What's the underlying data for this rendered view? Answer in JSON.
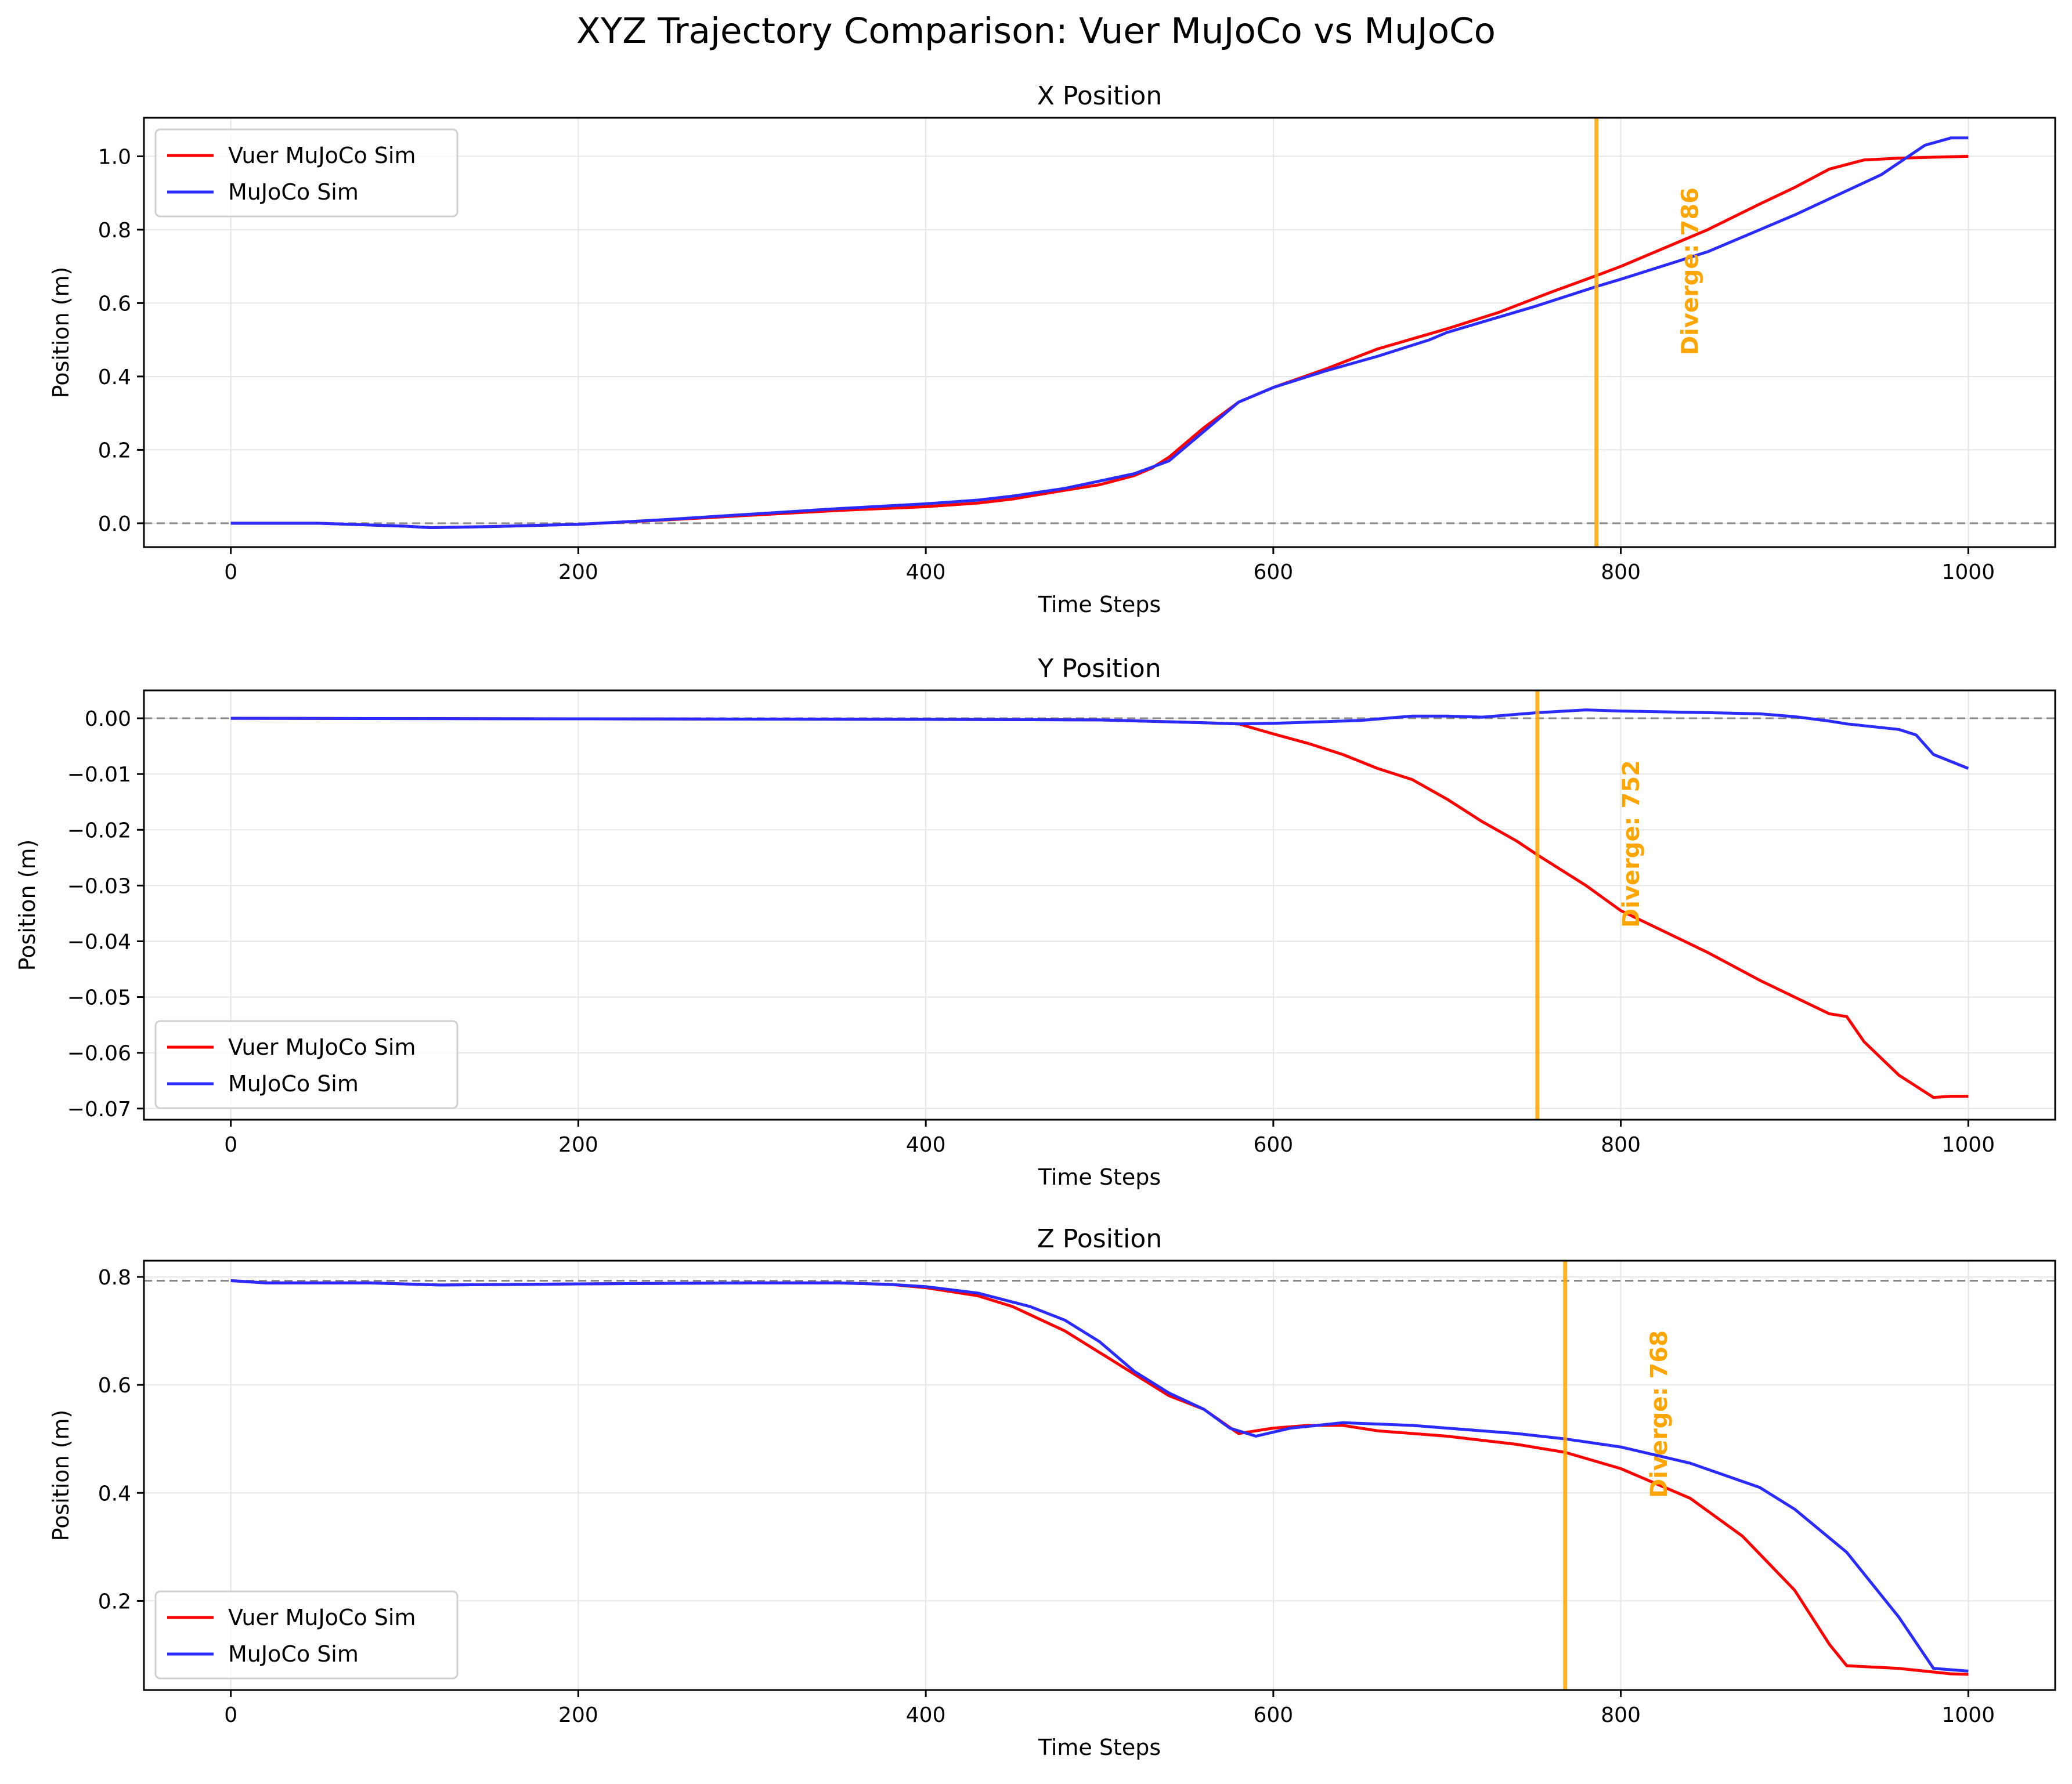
{
  "figure_title": "XYZ Trajectory Comparison: Vuer MuJoCo vs MuJoCo",
  "colors": {
    "vuer": "#ff0000",
    "mujoco": "#2b2bff",
    "diverge": "#ffa500",
    "reference": "#888888",
    "grid": "#e6e6e6"
  },
  "chart_data": [
    {
      "type": "line",
      "title": "X Position",
      "xlabel": "Time Steps",
      "ylabel": "Position (m)",
      "xlim": [
        -50,
        1050
      ],
      "ylim": [
        -0.065,
        1.105
      ],
      "xticks": [
        0,
        200,
        400,
        600,
        800,
        1000
      ],
      "yticks": [
        0.0,
        0.2,
        0.4,
        0.6,
        0.8,
        1.0
      ],
      "ytick_labels": [
        "0.0",
        "0.2",
        "0.4",
        "0.6",
        "0.8",
        "1.0"
      ],
      "grid": true,
      "legend_position": "upper-left",
      "reference_line": 0.0,
      "diverge": {
        "x": 786,
        "label": "Diverge: 786"
      },
      "series": [
        {
          "name": "Vuer MuJoCo Sim",
          "color": "#ff0000",
          "points": [
            [
              0,
              0.0
            ],
            [
              50,
              0.0
            ],
            [
              100,
              -0.008
            ],
            [
              115,
              -0.012
            ],
            [
              150,
              -0.009
            ],
            [
              200,
              -0.003
            ],
            [
              250,
              0.009
            ],
            [
              300,
              0.022
            ],
            [
              350,
              0.035
            ],
            [
              400,
              0.045
            ],
            [
              430,
              0.055
            ],
            [
              450,
              0.066
            ],
            [
              480,
              0.09
            ],
            [
              500,
              0.105
            ],
            [
              520,
              0.13
            ],
            [
              530,
              0.15
            ],
            [
              540,
              0.18
            ],
            [
              560,
              0.26
            ],
            [
              580,
              0.33
            ],
            [
              600,
              0.37
            ],
            [
              630,
              0.42
            ],
            [
              660,
              0.475
            ],
            [
              700,
              0.53
            ],
            [
              730,
              0.575
            ],
            [
              760,
              0.63
            ],
            [
              786,
              0.675
            ],
            [
              800,
              0.7
            ],
            [
              850,
              0.8
            ],
            [
              880,
              0.87
            ],
            [
              900,
              0.915
            ],
            [
              920,
              0.965
            ],
            [
              940,
              0.99
            ],
            [
              960,
              0.995
            ],
            [
              1000,
              1.0
            ]
          ]
        },
        {
          "name": "MuJoCo Sim",
          "color": "#2b2bff",
          "points": [
            [
              0,
              0.0
            ],
            [
              50,
              0.0
            ],
            [
              100,
              -0.008
            ],
            [
              115,
              -0.012
            ],
            [
              150,
              -0.009
            ],
            [
              200,
              -0.003
            ],
            [
              250,
              0.01
            ],
            [
              300,
              0.025
            ],
            [
              350,
              0.04
            ],
            [
              400,
              0.053
            ],
            [
              430,
              0.063
            ],
            [
              450,
              0.074
            ],
            [
              480,
              0.095
            ],
            [
              500,
              0.115
            ],
            [
              520,
              0.135
            ],
            [
              540,
              0.17
            ],
            [
              560,
              0.25
            ],
            [
              580,
              0.33
            ],
            [
              600,
              0.37
            ],
            [
              630,
              0.415
            ],
            [
              660,
              0.455
            ],
            [
              690,
              0.5
            ],
            [
              700,
              0.52
            ],
            [
              750,
              0.59
            ],
            [
              786,
              0.645
            ],
            [
              800,
              0.665
            ],
            [
              850,
              0.74
            ],
            [
              900,
              0.84
            ],
            [
              950,
              0.95
            ],
            [
              975,
              1.03
            ],
            [
              990,
              1.05
            ],
            [
              1000,
              1.05
            ]
          ]
        }
      ]
    },
    {
      "type": "line",
      "title": "Y Position",
      "xlabel": "Time Steps",
      "ylabel": "Position (m)",
      "xlim": [
        -50,
        1050
      ],
      "ylim": [
        -0.072,
        0.005
      ],
      "xticks": [
        0,
        200,
        400,
        600,
        800,
        1000
      ],
      "yticks": [
        0.0,
        -0.01,
        -0.02,
        -0.03,
        -0.04,
        -0.05,
        -0.06,
        -0.07
      ],
      "ytick_labels": [
        "0.00",
        "−0.01",
        "−0.02",
        "−0.03",
        "−0.04",
        "−0.05",
        "−0.06",
        "−0.07"
      ],
      "grid": true,
      "legend_position": "lower-left",
      "reference_line": 0.0,
      "diverge": {
        "x": 752,
        "label": "Diverge: 752"
      },
      "series": [
        {
          "name": "Vuer MuJoCo Sim",
          "color": "#ff0000",
          "points": [
            [
              0,
              0.0
            ],
            [
              200,
              -0.0001
            ],
            [
              400,
              -0.0002
            ],
            [
              500,
              -0.0003
            ],
            [
              560,
              -0.0008
            ],
            [
              580,
              -0.001
            ],
            [
              600,
              -0.0028
            ],
            [
              620,
              -0.0045
            ],
            [
              640,
              -0.0065
            ],
            [
              660,
              -0.009
            ],
            [
              680,
              -0.011
            ],
            [
              700,
              -0.0145
            ],
            [
              720,
              -0.0185
            ],
            [
              740,
              -0.022
            ],
            [
              752,
              -0.0245
            ],
            [
              780,
              -0.03
            ],
            [
              800,
              -0.0345
            ],
            [
              820,
              -0.0375
            ],
            [
              850,
              -0.042
            ],
            [
              880,
              -0.047
            ],
            [
              900,
              -0.05
            ],
            [
              920,
              -0.053
            ],
            [
              930,
              -0.0535
            ],
            [
              940,
              -0.058
            ],
            [
              960,
              -0.064
            ],
            [
              980,
              -0.068
            ],
            [
              990,
              -0.0678
            ],
            [
              1000,
              -0.0678
            ]
          ]
        },
        {
          "name": "MuJoCo Sim",
          "color": "#2b2bff",
          "points": [
            [
              0,
              0.0
            ],
            [
              200,
              -0.0001
            ],
            [
              400,
              -0.0002
            ],
            [
              500,
              -0.0003
            ],
            [
              560,
              -0.0008
            ],
            [
              580,
              -0.001
            ],
            [
              600,
              -0.0009
            ],
            [
              650,
              -0.0004
            ],
            [
              680,
              0.0004
            ],
            [
              700,
              0.0004
            ],
            [
              720,
              0.0002
            ],
            [
              752,
              0.001
            ],
            [
              780,
              0.0015
            ],
            [
              800,
              0.0013
            ],
            [
              850,
              0.001
            ],
            [
              880,
              0.0008
            ],
            [
              900,
              0.0003
            ],
            [
              920,
              -0.0005
            ],
            [
              930,
              -0.001
            ],
            [
              960,
              -0.002
            ],
            [
              970,
              -0.003
            ],
            [
              980,
              -0.0065
            ],
            [
              1000,
              -0.009
            ]
          ]
        }
      ]
    },
    {
      "type": "line",
      "title": "Z Position",
      "xlabel": "Time Steps",
      "ylabel": "Position (m)",
      "xlim": [
        -50,
        1050
      ],
      "ylim": [
        0.035,
        0.83
      ],
      "xticks": [
        0,
        200,
        400,
        600,
        800,
        1000
      ],
      "yticks": [
        0.2,
        0.4,
        0.6,
        0.8
      ],
      "ytick_labels": [
        "0.2",
        "0.4",
        "0.6",
        "0.8"
      ],
      "grid": true,
      "legend_position": "lower-left",
      "reference_line": 0.793,
      "diverge": {
        "x": 768,
        "label": "Diverge: 768"
      },
      "series": [
        {
          "name": "Vuer MuJoCo Sim",
          "color": "#ff0000",
          "points": [
            [
              0,
              0.793
            ],
            [
              20,
              0.789
            ],
            [
              80,
              0.789
            ],
            [
              120,
              0.785
            ],
            [
              200,
              0.787
            ],
            [
              300,
              0.789
            ],
            [
              350,
              0.789
            ],
            [
              380,
              0.786
            ],
            [
              400,
              0.78
            ],
            [
              430,
              0.765
            ],
            [
              450,
              0.745
            ],
            [
              480,
              0.7
            ],
            [
              500,
              0.66
            ],
            [
              520,
              0.62
            ],
            [
              540,
              0.58
            ],
            [
              560,
              0.555
            ],
            [
              580,
              0.51
            ],
            [
              600,
              0.52
            ],
            [
              620,
              0.525
            ],
            [
              640,
              0.525
            ],
            [
              660,
              0.515
            ],
            [
              700,
              0.505
            ],
            [
              740,
              0.49
            ],
            [
              768,
              0.475
            ],
            [
              800,
              0.445
            ],
            [
              840,
              0.39
            ],
            [
              870,
              0.32
            ],
            [
              900,
              0.22
            ],
            [
              920,
              0.12
            ],
            [
              930,
              0.08
            ],
            [
              960,
              0.075
            ],
            [
              990,
              0.065
            ],
            [
              1000,
              0.064
            ]
          ]
        },
        {
          "name": "MuJoCo Sim",
          "color": "#2b2bff",
          "points": [
            [
              0,
              0.793
            ],
            [
              20,
              0.789
            ],
            [
              80,
              0.789
            ],
            [
              120,
              0.785
            ],
            [
              200,
              0.787
            ],
            [
              300,
              0.789
            ],
            [
              350,
              0.789
            ],
            [
              380,
              0.786
            ],
            [
              400,
              0.782
            ],
            [
              430,
              0.77
            ],
            [
              460,
              0.745
            ],
            [
              480,
              0.72
            ],
            [
              500,
              0.68
            ],
            [
              520,
              0.625
            ],
            [
              540,
              0.585
            ],
            [
              560,
              0.555
            ],
            [
              575,
              0.52
            ],
            [
              590,
              0.505
            ],
            [
              610,
              0.52
            ],
            [
              640,
              0.53
            ],
            [
              680,
              0.525
            ],
            [
              700,
              0.52
            ],
            [
              740,
              0.51
            ],
            [
              768,
              0.5
            ],
            [
              800,
              0.485
            ],
            [
              840,
              0.455
            ],
            [
              880,
              0.41
            ],
            [
              900,
              0.37
            ],
            [
              930,
              0.29
            ],
            [
              960,
              0.17
            ],
            [
              980,
              0.075
            ],
            [
              1000,
              0.07
            ]
          ]
        }
      ]
    }
  ]
}
